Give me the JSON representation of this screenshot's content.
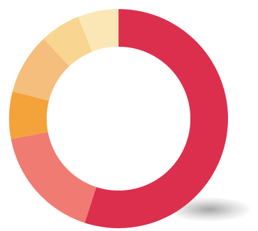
{
  "chart_data": {
    "type": "pie",
    "variant": "donut",
    "title": "",
    "categories": [
      "",
      "",
      "",
      "",
      "",
      ""
    ],
    "values": [
      55,
      17,
      7,
      9,
      6,
      6
    ],
    "colors": [
      "#dc2f4e",
      "#f07b72",
      "#f3a33a",
      "#f6be7c",
      "#f8d590",
      "#fbe7b6"
    ],
    "start_angle_deg": 0,
    "direction": "clockwise",
    "has_shadow": true
  }
}
